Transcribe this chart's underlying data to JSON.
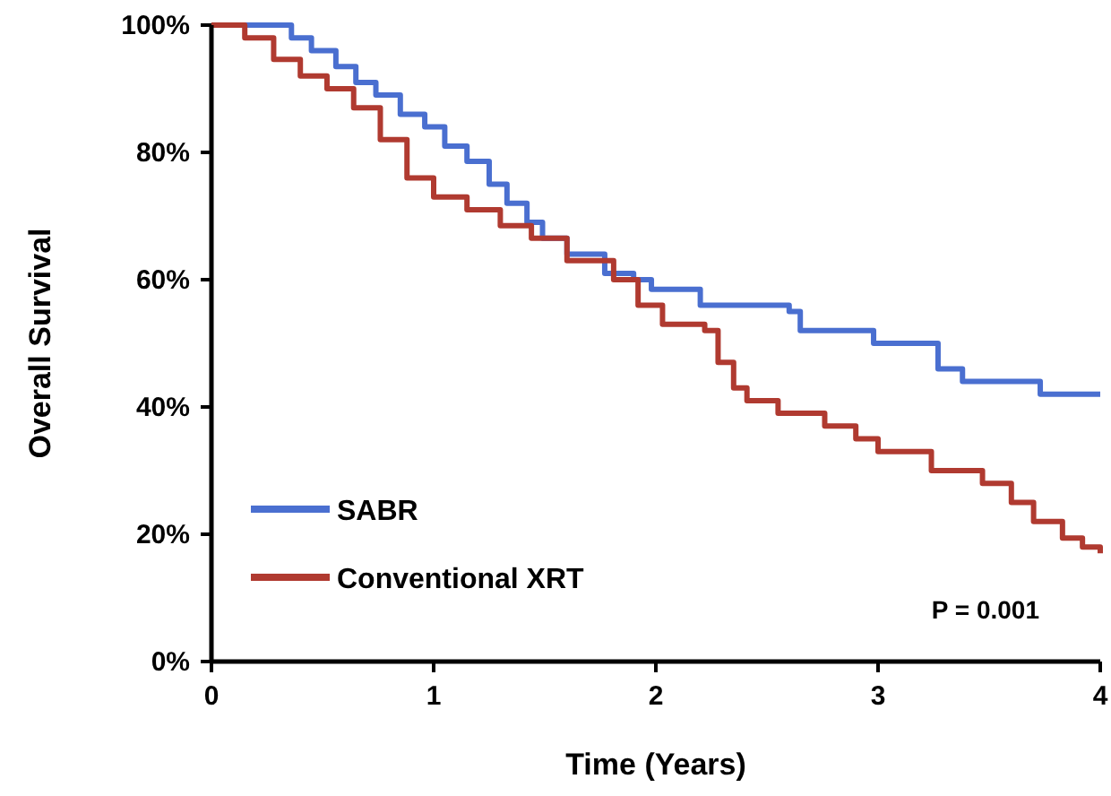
{
  "chart_data": {
    "type": "step",
    "xlabel": "Time (Years)",
    "ylabel": "Overall Survival",
    "xlim": [
      0,
      4
    ],
    "xticks": [
      0,
      1,
      2,
      3,
      4
    ],
    "ylim": [
      0,
      100
    ],
    "yticks": [
      {
        "value": 0,
        "label": "0%"
      },
      {
        "value": 20,
        "label": "20%"
      },
      {
        "value": 40,
        "label": "40%"
      },
      {
        "value": 60,
        "label": "60%"
      },
      {
        "value": 80,
        "label": "80%"
      },
      {
        "value": 100,
        "label": "100%"
      }
    ],
    "grid": false,
    "legend": "bottom left",
    "annotations": [
      "P = 0.001"
    ],
    "series": [
      {
        "name": "SABR",
        "color": "#4a6fd0",
        "x": [
          0,
          0.36,
          0.45,
          0.56,
          0.65,
          0.74,
          0.85,
          0.96,
          1.05,
          1.15,
          1.25,
          1.33,
          1.42,
          1.49,
          1.6,
          1.77,
          1.9,
          1.98,
          2.2,
          2.6,
          2.65,
          2.98,
          3.27,
          3.38,
          3.73,
          4
        ],
        "values": [
          100,
          98,
          96,
          93.5,
          91,
          89,
          86,
          84,
          81,
          78.6,
          75,
          72,
          69,
          66.5,
          64,
          61,
          60,
          58.5,
          56,
          55,
          52,
          50,
          46,
          44,
          42,
          42
        ]
      },
      {
        "name": "Conventional XRT",
        "color": "#b03a30",
        "x": [
          0,
          0.15,
          0.28,
          0.4,
          0.52,
          0.64,
          0.76,
          0.88,
          1.0,
          1.15,
          1.3,
          1.44,
          1.6,
          1.81,
          1.92,
          2.03,
          2.22,
          2.28,
          2.35,
          2.41,
          2.55,
          2.76,
          2.9,
          3.0,
          3.24,
          3.47,
          3.6,
          3.7,
          3.83,
          3.92,
          4
        ],
        "values": [
          100,
          98,
          94.6,
          92,
          90,
          87,
          82,
          76,
          73,
          71,
          68.5,
          66.5,
          63,
          60,
          56,
          53,
          52,
          47,
          43,
          41,
          39,
          37,
          35,
          33,
          30,
          28,
          25,
          22,
          19.4,
          18,
          17
        ]
      }
    ]
  }
}
